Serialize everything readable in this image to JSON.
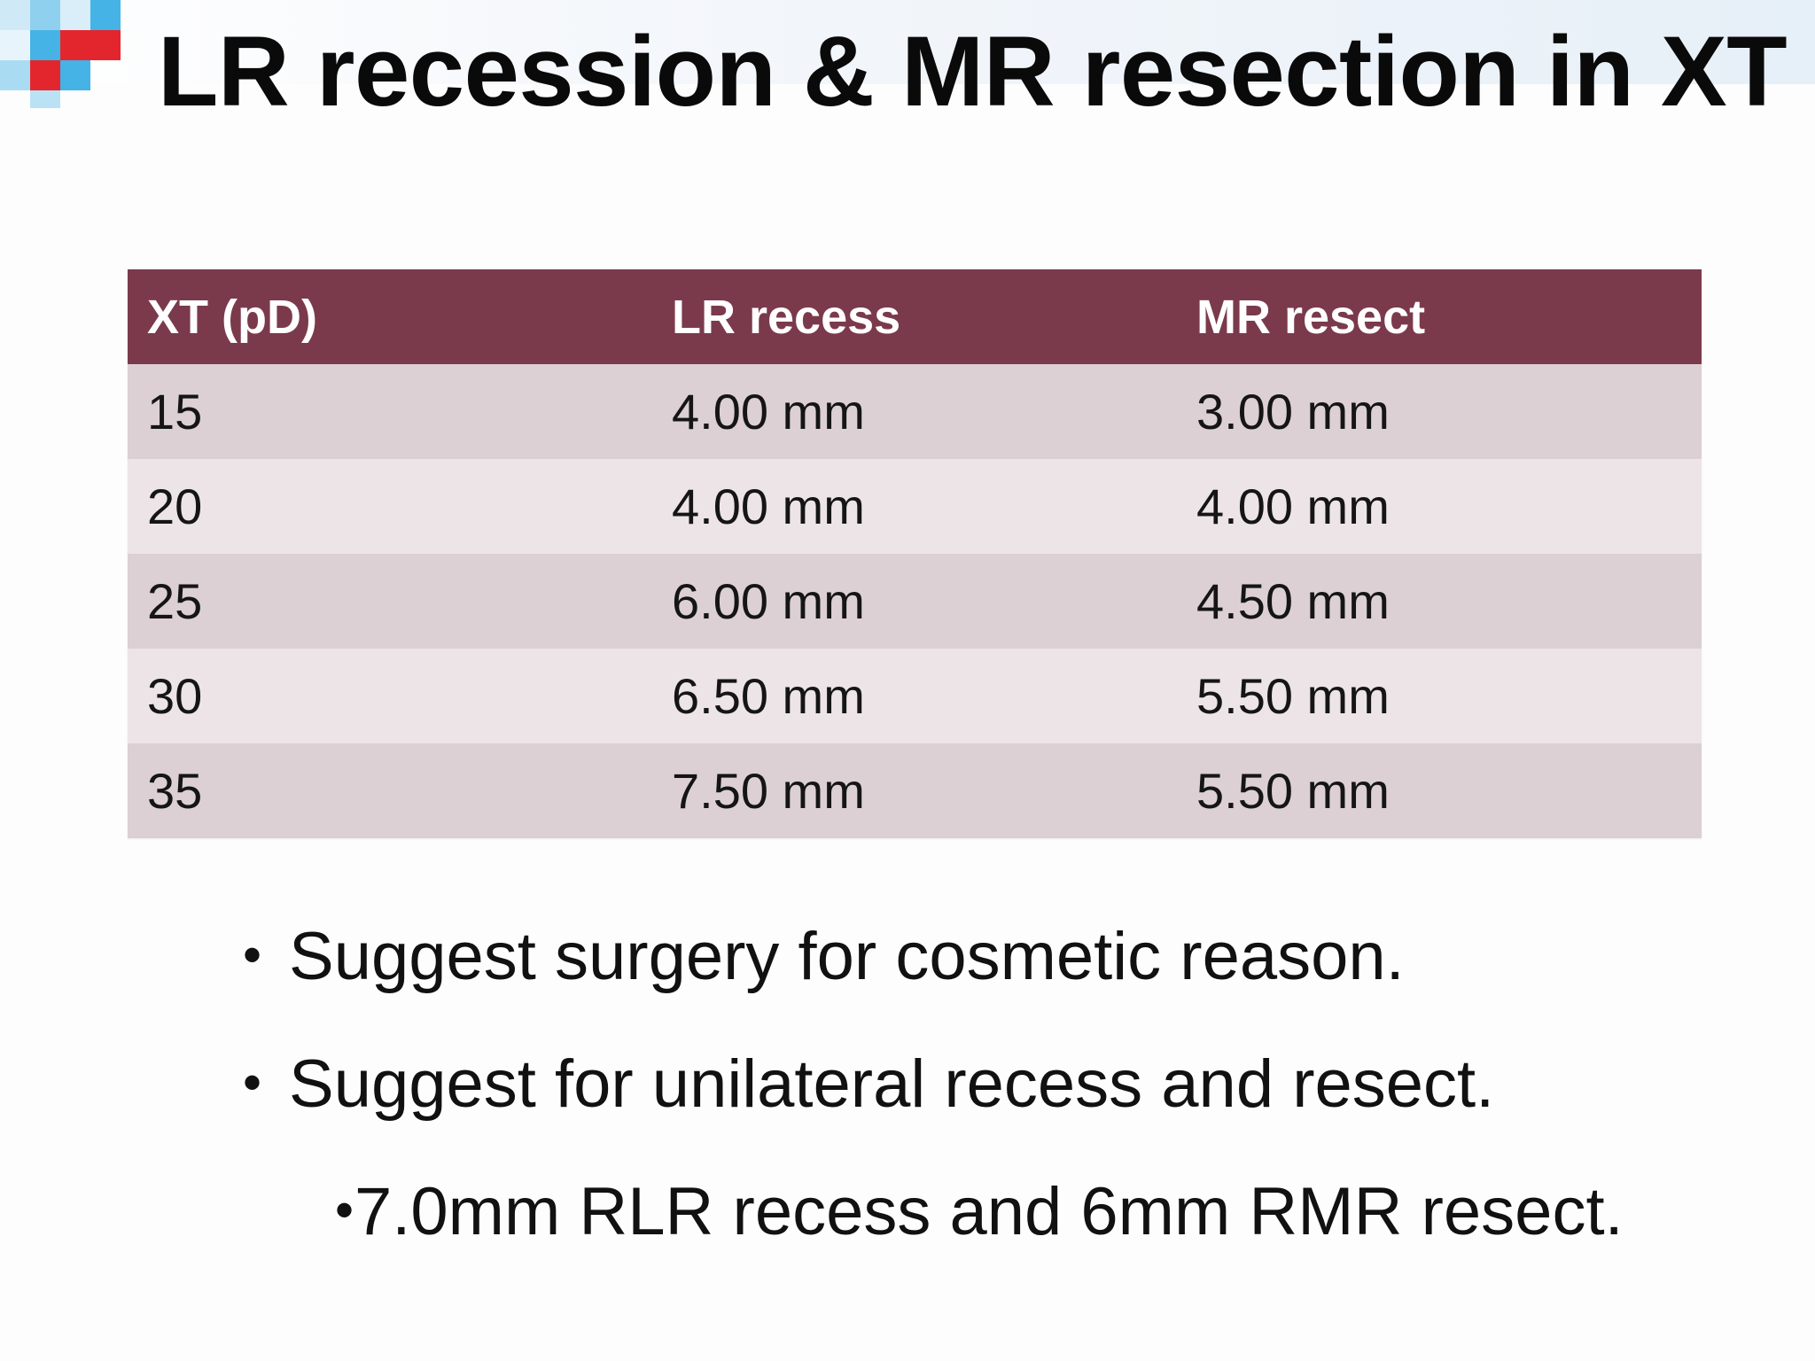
{
  "title": "LR recession & MR resection in XT",
  "colors": {
    "header_bg": "#7b3a4c",
    "row_odd": "#dcd0d4",
    "row_even": "#ede4e8",
    "logo_blue": "#45b3e6",
    "logo_red": "#e3262d"
  },
  "table": {
    "headers": [
      "XT (pD)",
      "LR recess",
      "MR resect"
    ],
    "rows": [
      [
        "15",
        "4.00 mm",
        "3.00 mm"
      ],
      [
        "20",
        "4.00 mm",
        "4.00 mm"
      ],
      [
        "25",
        "6.00 mm",
        "4.50 mm"
      ],
      [
        "30",
        "6.50 mm",
        "5.50 mm"
      ],
      [
        "35",
        "7.50 mm",
        "5.50 mm"
      ]
    ]
  },
  "bullets": [
    {
      "marker": "•",
      "text": "Suggest surgery for cosmetic reason."
    },
    {
      "marker": "•",
      "text": "Suggest for unilateral recess and resect."
    },
    {
      "marker": "•",
      "text": "7.0mm RLR recess and 6mm RMR resect."
    }
  ]
}
